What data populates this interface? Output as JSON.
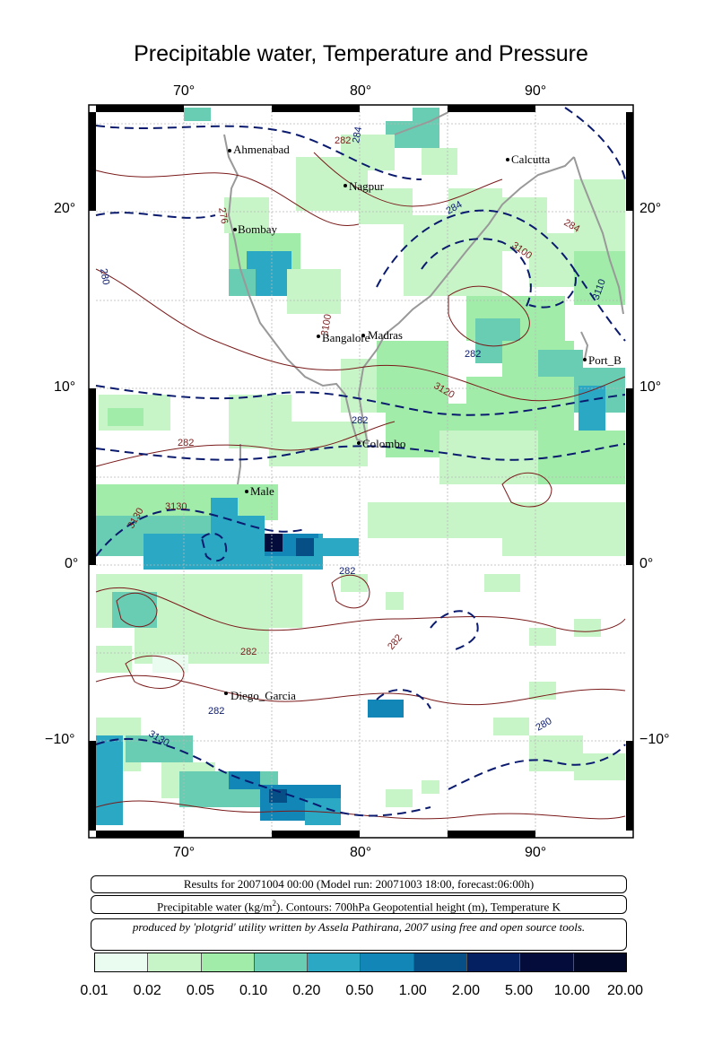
{
  "title": "Precipitable water, Temperature and Pressure",
  "axes": {
    "x_ticks": [
      "70°",
      "80°",
      "90°"
    ],
    "y_ticks": [
      "20°",
      "10°",
      "0°",
      "−10°"
    ]
  },
  "cities": [
    {
      "name": "Ahmenabad"
    },
    {
      "name": "Nagpur"
    },
    {
      "name": "Calcutta"
    },
    {
      "name": "Bombay"
    },
    {
      "name": "Bangalore"
    },
    {
      "name": "Madras"
    },
    {
      "name": "Port_B"
    },
    {
      "name": "Colombo"
    },
    {
      "name": "Male"
    },
    {
      "name": "Diego_Garcia"
    }
  ],
  "contour_labels": [
    "282",
    "284",
    "276",
    "280",
    "3100",
    "3110",
    "284",
    "282",
    "3120",
    "282",
    "3130",
    "3130",
    "282",
    "282",
    "282",
    "282",
    "3130",
    "280",
    "282",
    "284",
    "3100"
  ],
  "info": {
    "results": "Results for 20071004 00:00 (Model run: 20071003 18:00, forecast:06:00h)",
    "legend_prefix": "Precipitable water (kg/m",
    "legend_sup": "2",
    "legend_suffix": ").  Contours: 700hPa Geopotential height (m), Temperature K",
    "credit": "produced by 'plotgrid' utility written by Assela Pathirana, 2007 using free and open source tools."
  },
  "colorbar": {
    "labels": [
      "0.01",
      "0.02",
      "0.05",
      "0.10",
      "0.20",
      "0.50",
      "1.00",
      "2.00",
      "5.00",
      "10.00",
      "20.00"
    ],
    "colors": [
      "#eafcf0",
      "#c8f5c8",
      "#a0eca8",
      "#68cdb2",
      "#2aa8c4",
      "#1386b8",
      "#064e86",
      "#042060",
      "#030c3a",
      "#020828"
    ]
  }
}
